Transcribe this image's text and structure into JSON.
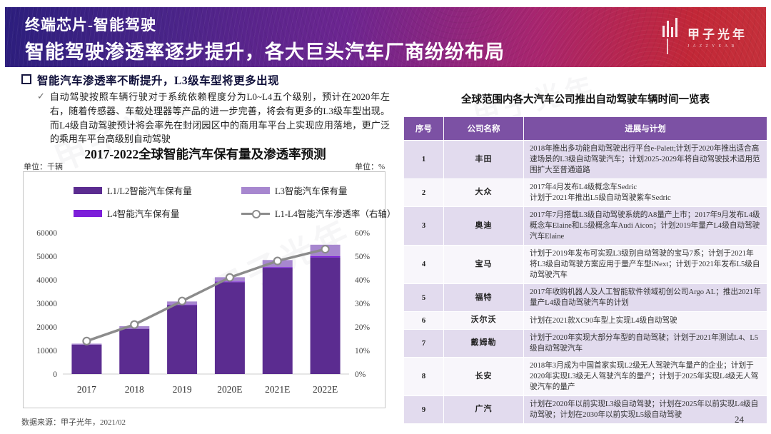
{
  "header": {
    "kicker": "终端芯片-智能驾驶",
    "title": "智能驾驶渗透率逐步提升，各大巨头汽车厂商纷纷布局",
    "logo_cn": "甲子光年",
    "logo_en": "JAZZYEAR"
  },
  "watermark": {
    "text": "甲子光年"
  },
  "summary": {
    "heading": "智能汽车渗透率不断提升，L3级车型将更多出现",
    "check_glyph": "✓",
    "body": "自动驾驶按照车辆行驶对于系统依赖程度分为L0~L4五个级别，预计在2020年左右，随着传感器、车载处理器等产品的进一步完善，将会有更多的L3级车型出现。而L4级自动驾驶预计将会率先在封闭园区中的商用车平台上实现应用落地，更广泛的乘用车平台高级别自动驾驶"
  },
  "chart": {
    "title": "2017-2022全球智能汽车保有量及渗透率预测",
    "unit_left": "单位：千辆",
    "unit_right": "单位：%"
  },
  "chart_data": {
    "type": "bar",
    "subtype": "stacked-bars-with-line",
    "title": "2017-2022全球智能汽车保有量及渗透率预测",
    "categories": [
      "2017",
      "2018",
      "2019",
      "2020E",
      "2021E",
      "2022E"
    ],
    "series": [
      {
        "name": "L1/L2智能汽车保有量",
        "type": "bar",
        "color": "#5b2c90",
        "values": [
          12500,
          19200,
          29300,
          39000,
          45000,
          49500
        ]
      },
      {
        "name": "L3智能汽车保有量",
        "type": "bar",
        "color": "#a787cf",
        "values": [
          400,
          1000,
          1300,
          1800,
          3000,
          4900
        ]
      },
      {
        "name": "L4智能汽车保有量",
        "type": "bar",
        "color": "#7c1fd9",
        "values": [
          0,
          100,
          200,
          300,
          400,
          500
        ]
      },
      {
        "name": "L1-L4智能汽车渗透率（右轴）",
        "type": "line",
        "color": "#8c8c8c",
        "values": [
          14,
          21,
          31,
          41,
          48,
          53
        ]
      }
    ],
    "stack_order": [
      0,
      2,
      1
    ],
    "line_index": 3,
    "y_left": {
      "min": 0,
      "max": 60000,
      "step": 10000,
      "label": "千辆"
    },
    "y_right": {
      "min": 0,
      "max": 60,
      "step": 10,
      "suffix": "%",
      "label": "%"
    },
    "grid": false,
    "legend_position": "top"
  },
  "table": {
    "title": "全球范围内各大汽车公司推出自动驾驶车辆时间一览表",
    "headers": [
      "序号",
      "公司名称",
      "进展与计划"
    ],
    "rows": [
      {
        "no": "1",
        "company": "丰田",
        "plan": "2018年推出多功能自动驾驶出行平台e-Palett;计划于2020年推出适合高速场景的L3级自动驾驶汽车；计划2025-2029年将自动驾驶技术适用范围扩大至普通道路"
      },
      {
        "no": "2",
        "company": "大众",
        "plan": "2017年4月发布L4级概念车Sedric\n计划于2021年推出L5级自动驾驶紫车Sedric"
      },
      {
        "no": "3",
        "company": "奥迪",
        "plan": "2017年7月搭载L3级自动驾驶系统的A8量产上市；2017年9月发布L4级概念车Elaine和L5级概念车Audi Aicon；计划2019年量产L4级自动驾驶汽车Elaine"
      },
      {
        "no": "4",
        "company": "宝马",
        "plan": "计划于2019年发布可实现L3级别自动驾驶的宝马7系；计划于2021年将L3级自动驾驶方案应用于量产车型iNext；计划于2021年发布L5级自动驾驶汽车"
      },
      {
        "no": "5",
        "company": "福特",
        "plan": "2017年收购机器人及人工智能软件领域初创公司Argo AL；推出2021年量产L4级自动驾驶汽车的计划"
      },
      {
        "no": "6",
        "company": "沃尔沃",
        "plan": "计划在2021款XC90车型上实现L4级自动驾驶"
      },
      {
        "no": "7",
        "company": "戴姆勒",
        "plan": "计划于2020年实现大部分车型的自动驾驶；计划于2021年测试L4、L5级自动驾驶汽车"
      },
      {
        "no": "8",
        "company": "长安",
        "plan": "2018年3月成为中国首家实现L2级无人驾驶汽车量产的企业；计划于2020年实现L3级无人驾驶汽车的量产；计划于2025年实现L4级无人驾驶汽车的量产"
      },
      {
        "no": "9",
        "company": "广汽",
        "plan": "计划在2020年以前实现L3级自动驾驶；计划在2025年以前实现L4级自动驾驶；计划在2030年以前实现L5级自动驾驶"
      }
    ]
  },
  "footer": {
    "source": "数据来源：甲子光年，2021/02",
    "page": "24"
  },
  "colors": {
    "header_gradient_left": "#2c1e7d",
    "header_gradient_right": "#c5303a",
    "bar_l1l2": "#5b2c90",
    "bar_l3": "#a787cf",
    "bar_l4": "#7c1fd9",
    "line_gray": "#8c8c8c",
    "table_header_bg": "#7c51a4",
    "row_lavender": "#e2dbee",
    "row_white": "#f8f6fb"
  }
}
